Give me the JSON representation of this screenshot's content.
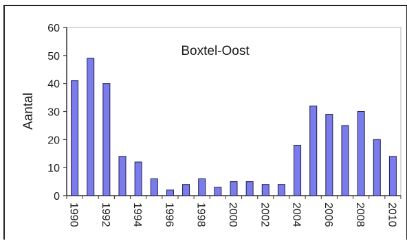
{
  "chart_data": {
    "type": "bar",
    "title": "Boxtel-Oost",
    "xlabel": "",
    "ylabel": "Aantal",
    "ylim": [
      0,
      60
    ],
    "yticks": [
      0,
      10,
      20,
      30,
      40,
      50,
      60
    ],
    "grid": false,
    "categories": [
      1990,
      1991,
      1992,
      1993,
      1994,
      1995,
      1996,
      1997,
      1998,
      1999,
      2000,
      2001,
      2002,
      2003,
      2004,
      2005,
      2006,
      2007,
      2008,
      2009,
      2010
    ],
    "x_tick_labels": [
      "1990",
      "1992",
      "1994",
      "1996",
      "1998",
      "2000",
      "2002",
      "2004",
      "2006",
      "2008",
      "2010"
    ],
    "values": [
      41,
      49,
      40,
      14,
      12,
      6,
      2,
      4,
      6,
      3,
      5,
      5,
      4,
      4,
      18,
      32,
      29,
      25,
      30,
      20,
      14
    ],
    "bar_color": "#7b7bea",
    "bar_stroke": "#1c1c5a"
  }
}
